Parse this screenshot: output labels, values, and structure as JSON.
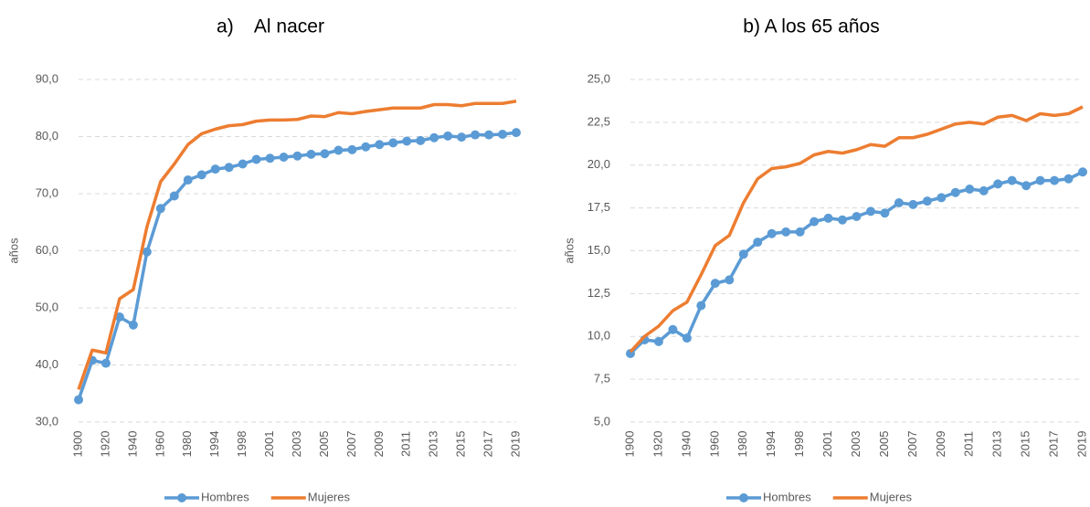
{
  "chart_data": [
    {
      "type": "line",
      "title": "a)    Al nacer",
      "y_label": "años",
      "categories": [
        "1900",
        null,
        "1920",
        null,
        "1940",
        null,
        "1960",
        null,
        "1980",
        null,
        "1994",
        null,
        "1998",
        null,
        "2001",
        null,
        "2003",
        null,
        "2005",
        null,
        "2007",
        null,
        "2009",
        null,
        "2011",
        null,
        "2013",
        null,
        "2015",
        null,
        "2017",
        null,
        "2019"
      ],
      "series": [
        {
          "name": "Hombres",
          "color": "#5b9bd5",
          "marker": "circle",
          "values": [
            33.9,
            40.8,
            40.3,
            48.4,
            47.0,
            59.8,
            67.4,
            69.6,
            72.4,
            73.3,
            74.3,
            74.6,
            75.2,
            76.0,
            76.2,
            76.4,
            76.6,
            76.9,
            77.0,
            77.6,
            77.7,
            78.2,
            78.6,
            78.9,
            79.2,
            79.3,
            79.8,
            80.1,
            79.9,
            80.3,
            80.3,
            80.4,
            80.7
          ]
        },
        {
          "name": "Mujeres",
          "color": "#ed7d31",
          "marker": "none",
          "values": [
            35.7,
            42.6,
            42.1,
            51.6,
            53.2,
            64.2,
            72.1,
            75.2,
            78.6,
            80.5,
            81.3,
            81.9,
            82.1,
            82.7,
            82.9,
            82.9,
            83.0,
            83.6,
            83.5,
            84.2,
            84.0,
            84.4,
            84.7,
            85.0,
            85.0,
            85.0,
            85.6,
            85.6,
            85.4,
            85.8,
            85.8,
            85.8,
            86.2
          ]
        }
      ],
      "ylim": [
        30,
        90
      ],
      "yticks": [
        {
          "value": 30,
          "label": "30,0"
        },
        {
          "value": 40,
          "label": "40,0"
        },
        {
          "value": 50,
          "label": "50,0"
        },
        {
          "value": 60,
          "label": "60,0"
        },
        {
          "value": 70,
          "label": "70,0"
        },
        {
          "value": 80,
          "label": "80,0"
        },
        {
          "value": 90,
          "label": "90,0"
        }
      ],
      "grid": true,
      "legend": "bottom"
    },
    {
      "type": "line",
      "title": "b) A los 65 años",
      "y_label": "años",
      "categories": [
        "1900",
        null,
        "1920",
        null,
        "1940",
        null,
        "1960",
        null,
        "1980",
        null,
        "1994",
        null,
        "1998",
        null,
        "2001",
        null,
        "2003",
        null,
        "2005",
        null,
        "2007",
        null,
        "2009",
        null,
        "2011",
        null,
        "2013",
        null,
        "2015",
        null,
        "2017",
        null,
        "2019"
      ],
      "series": [
        {
          "name": "Hombres",
          "color": "#5b9bd5",
          "marker": "circle",
          "values": [
            9.0,
            9.8,
            9.7,
            10.4,
            9.9,
            11.8,
            13.1,
            13.3,
            14.8,
            15.5,
            16.0,
            16.1,
            16.1,
            16.7,
            16.9,
            16.8,
            17.0,
            17.3,
            17.2,
            17.8,
            17.7,
            17.9,
            18.1,
            18.4,
            18.6,
            18.5,
            18.9,
            19.1,
            18.8,
            19.1,
            19.1,
            19.2,
            19.6
          ]
        },
        {
          "name": "Mujeres",
          "color": "#ed7d31",
          "marker": "none",
          "values": [
            9.1,
            10.0,
            10.6,
            11.5,
            12.0,
            13.6,
            15.3,
            15.9,
            17.8,
            19.2,
            19.8,
            19.9,
            20.1,
            20.6,
            20.8,
            20.7,
            20.9,
            21.2,
            21.1,
            21.6,
            21.6,
            21.8,
            22.1,
            22.4,
            22.5,
            22.4,
            22.8,
            22.9,
            22.6,
            23.0,
            22.9,
            23.0,
            23.4
          ]
        }
      ],
      "ylim": [
        5,
        25
      ],
      "yticks": [
        {
          "value": 5,
          "label": "5,0"
        },
        {
          "value": 7.5,
          "label": "7,5"
        },
        {
          "value": 10,
          "label": "10,0"
        },
        {
          "value": 12.5,
          "label": "12,5"
        },
        {
          "value": 15,
          "label": "15,0"
        },
        {
          "value": 17.5,
          "label": "17,5"
        },
        {
          "value": 20,
          "label": "20,0"
        },
        {
          "value": 22.5,
          "label": "22,5"
        },
        {
          "value": 25,
          "label": "25,0"
        }
      ],
      "grid": true,
      "legend": "bottom"
    }
  ]
}
